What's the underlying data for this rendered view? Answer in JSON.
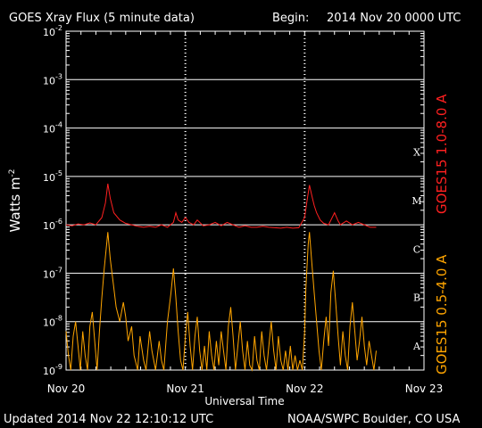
{
  "chart_data": {
    "type": "line",
    "title": "GOES Xray Flux (5 minute data)",
    "begin_label": "Begin:",
    "begin_value": "2014 Nov 20 0000 UTC",
    "xlabel": "Universal Time",
    "ylabel_base": "Watts m",
    "ylabel_exp": "-2",
    "xlim_days": [
      0,
      3
    ],
    "ylim": [
      1e-09,
      0.01
    ],
    "yscale": "log",
    "x_ticks": [
      {
        "day": 0,
        "label": "Nov 20"
      },
      {
        "day": 1,
        "label": "Nov 21"
      },
      {
        "day": 2,
        "label": "Nov 22"
      },
      {
        "day": 3,
        "label": "Nov 23"
      }
    ],
    "y_ticks": [
      {
        "exp": -2,
        "label": "-2"
      },
      {
        "exp": -3,
        "label": "-3"
      },
      {
        "exp": -4,
        "label": "-4"
      },
      {
        "exp": -5,
        "label": "-5"
      },
      {
        "exp": -6,
        "label": "-6"
      },
      {
        "exp": -7,
        "label": "-7"
      },
      {
        "exp": -8,
        "label": "-8"
      },
      {
        "exp": -9,
        "label": "-9"
      }
    ],
    "y_tick_base": "10",
    "flare_classes": [
      {
        "label": "X",
        "exp": -4
      },
      {
        "label": "M",
        "exp": -5
      },
      {
        "label": "C",
        "exp": -6
      },
      {
        "label": "B",
        "exp": -7
      },
      {
        "label": "A",
        "exp": -8
      }
    ],
    "series": [
      {
        "name": "GOES15 1.0-8.0 A",
        "color": "#ff2020",
        "points": [
          [
            0.0,
            -6.0
          ],
          [
            0.05,
            -6.02
          ],
          [
            0.1,
            -5.98
          ],
          [
            0.15,
            -6.0
          ],
          [
            0.2,
            -5.96
          ],
          [
            0.25,
            -6.0
          ],
          [
            0.3,
            -5.85
          ],
          [
            0.33,
            -5.55
          ],
          [
            0.35,
            -5.15
          ],
          [
            0.37,
            -5.45
          ],
          [
            0.4,
            -5.75
          ],
          [
            0.45,
            -5.9
          ],
          [
            0.5,
            -5.97
          ],
          [
            0.55,
            -6.0
          ],
          [
            0.6,
            -6.03
          ],
          [
            0.65,
            -6.05
          ],
          [
            0.7,
            -6.03
          ],
          [
            0.75,
            -6.05
          ],
          [
            0.8,
            -6.0
          ],
          [
            0.85,
            -6.05
          ],
          [
            0.9,
            -5.95
          ],
          [
            0.92,
            -5.75
          ],
          [
            0.94,
            -5.9
          ],
          [
            0.97,
            -5.95
          ],
          [
            1.0,
            -5.85
          ],
          [
            1.03,
            -5.95
          ],
          [
            1.07,
            -6.0
          ],
          [
            1.1,
            -5.9
          ],
          [
            1.15,
            -6.02
          ],
          [
            1.2,
            -6.0
          ],
          [
            1.25,
            -5.95
          ],
          [
            1.3,
            -6.02
          ],
          [
            1.35,
            -5.95
          ],
          [
            1.4,
            -6.0
          ],
          [
            1.45,
            -6.05
          ],
          [
            1.5,
            -6.02
          ],
          [
            1.55,
            -6.05
          ],
          [
            1.6,
            -6.05
          ],
          [
            1.65,
            -6.03
          ],
          [
            1.7,
            -6.05
          ],
          [
            1.75,
            -6.06
          ],
          [
            1.8,
            -6.07
          ],
          [
            1.85,
            -6.05
          ],
          [
            1.9,
            -6.07
          ],
          [
            1.95,
            -6.06
          ],
          [
            2.0,
            -5.85
          ],
          [
            2.02,
            -5.5
          ],
          [
            2.04,
            -5.18
          ],
          [
            2.06,
            -5.4
          ],
          [
            2.08,
            -5.6
          ],
          [
            2.1,
            -5.75
          ],
          [
            2.13,
            -5.9
          ],
          [
            2.16,
            -5.97
          ],
          [
            2.2,
            -6.0
          ],
          [
            2.25,
            -5.75
          ],
          [
            2.28,
            -5.92
          ],
          [
            2.3,
            -6.0
          ],
          [
            2.35,
            -5.92
          ],
          [
            2.4,
            -6.0
          ],
          [
            2.45,
            -5.95
          ],
          [
            2.5,
            -6.0
          ],
          [
            2.55,
            -6.05
          ],
          [
            2.6,
            -6.05
          ]
        ]
      },
      {
        "name": "GOES15 0.5-4.0 A",
        "color": "#ffa500",
        "points": [
          [
            0.0,
            -8.2
          ],
          [
            0.02,
            -8.7
          ],
          [
            0.04,
            -9.0
          ],
          [
            0.06,
            -8.3
          ],
          [
            0.08,
            -8.0
          ],
          [
            0.1,
            -8.5
          ],
          [
            0.12,
            -9.0
          ],
          [
            0.14,
            -8.2
          ],
          [
            0.16,
            -8.7
          ],
          [
            0.18,
            -9.0
          ],
          [
            0.2,
            -8.1
          ],
          [
            0.22,
            -7.8
          ],
          [
            0.24,
            -8.4
          ],
          [
            0.26,
            -9.0
          ],
          [
            0.28,
            -8.2
          ],
          [
            0.3,
            -7.5
          ],
          [
            0.32,
            -6.9
          ],
          [
            0.35,
            -6.15
          ],
          [
            0.37,
            -6.7
          ],
          [
            0.4,
            -7.3
          ],
          [
            0.42,
            -7.7
          ],
          [
            0.45,
            -8.0
          ],
          [
            0.48,
            -7.6
          ],
          [
            0.5,
            -7.9
          ],
          [
            0.52,
            -8.4
          ],
          [
            0.55,
            -8.1
          ],
          [
            0.57,
            -8.7
          ],
          [
            0.6,
            -9.0
          ],
          [
            0.62,
            -8.3
          ],
          [
            0.65,
            -8.8
          ],
          [
            0.67,
            -9.0
          ],
          [
            0.7,
            -8.2
          ],
          [
            0.72,
            -8.6
          ],
          [
            0.75,
            -9.0
          ],
          [
            0.78,
            -8.4
          ],
          [
            0.8,
            -8.8
          ],
          [
            0.82,
            -9.0
          ],
          [
            0.85,
            -8.0
          ],
          [
            0.88,
            -7.4
          ],
          [
            0.9,
            -6.9
          ],
          [
            0.92,
            -7.5
          ],
          [
            0.94,
            -8.2
          ],
          [
            0.96,
            -8.8
          ],
          [
            0.98,
            -9.0
          ],
          [
            1.0,
            -8.3
          ],
          [
            1.02,
            -7.8
          ],
          [
            1.04,
            -8.5
          ],
          [
            1.06,
            -9.0
          ],
          [
            1.08,
            -8.3
          ],
          [
            1.1,
            -7.9
          ],
          [
            1.12,
            -8.6
          ],
          [
            1.14,
            -9.0
          ],
          [
            1.16,
            -8.5
          ],
          [
            1.18,
            -9.0
          ],
          [
            1.2,
            -8.2
          ],
          [
            1.22,
            -8.7
          ],
          [
            1.24,
            -9.0
          ],
          [
            1.26,
            -8.4
          ],
          [
            1.28,
            -8.9
          ],
          [
            1.3,
            -8.2
          ],
          [
            1.32,
            -8.6
          ],
          [
            1.34,
            -9.0
          ],
          [
            1.36,
            -8.1
          ],
          [
            1.38,
            -7.7
          ],
          [
            1.4,
            -8.3
          ],
          [
            1.42,
            -9.0
          ],
          [
            1.44,
            -8.5
          ],
          [
            1.46,
            -8.0
          ],
          [
            1.48,
            -8.6
          ],
          [
            1.5,
            -9.0
          ],
          [
            1.52,
            -8.4
          ],
          [
            1.54,
            -8.9
          ],
          [
            1.56,
            -9.0
          ],
          [
            1.58,
            -8.3
          ],
          [
            1.6,
            -8.8
          ],
          [
            1.62,
            -9.0
          ],
          [
            1.64,
            -8.2
          ],
          [
            1.66,
            -8.7
          ],
          [
            1.68,
            -9.0
          ],
          [
            1.7,
            -8.5
          ],
          [
            1.72,
            -8.0
          ],
          [
            1.74,
            -8.6
          ],
          [
            1.76,
            -9.0
          ],
          [
            1.78,
            -8.3
          ],
          [
            1.8,
            -8.8
          ],
          [
            1.82,
            -9.0
          ],
          [
            1.84,
            -8.6
          ],
          [
            1.86,
            -9.0
          ],
          [
            1.88,
            -8.5
          ],
          [
            1.9,
            -9.0
          ],
          [
            1.92,
            -8.7
          ],
          [
            1.94,
            -9.0
          ],
          [
            1.96,
            -8.8
          ],
          [
            1.98,
            -9.0
          ],
          [
            2.0,
            -8.2
          ],
          [
            2.01,
            -7.3
          ],
          [
            2.03,
            -6.4
          ],
          [
            2.04,
            -6.15
          ],
          [
            2.06,
            -6.8
          ],
          [
            2.08,
            -7.4
          ],
          [
            2.1,
            -8.0
          ],
          [
            2.12,
            -8.6
          ],
          [
            2.14,
            -9.0
          ],
          [
            2.16,
            -8.4
          ],
          [
            2.18,
            -7.9
          ],
          [
            2.2,
            -8.5
          ],
          [
            2.22,
            -7.4
          ],
          [
            2.24,
            -6.95
          ],
          [
            2.26,
            -7.6
          ],
          [
            2.28,
            -8.3
          ],
          [
            2.3,
            -8.9
          ],
          [
            2.32,
            -8.2
          ],
          [
            2.34,
            -8.7
          ],
          [
            2.36,
            -9.0
          ],
          [
            2.38,
            -8.1
          ],
          [
            2.4,
            -7.6
          ],
          [
            2.42,
            -8.2
          ],
          [
            2.44,
            -8.8
          ],
          [
            2.46,
            -8.4
          ],
          [
            2.48,
            -7.9
          ],
          [
            2.5,
            -8.5
          ],
          [
            2.52,
            -8.9
          ],
          [
            2.54,
            -8.4
          ],
          [
            2.56,
            -8.7
          ],
          [
            2.58,
            -9.0
          ],
          [
            2.6,
            -8.6
          ]
        ]
      }
    ],
    "grid": "horizontal lines at each decade; dotted vertical lines at day boundaries",
    "legend": "right, vertical labels"
  },
  "footer": {
    "updated": "Updated 2014 Nov 22 12:10:12 UTC",
    "credit": "NOAA/SWPC Boulder, CO USA"
  },
  "colors": {
    "background": "#000000",
    "axes": "#ffffff",
    "long_channel": "#ff2020",
    "short_channel": "#ffa500"
  }
}
